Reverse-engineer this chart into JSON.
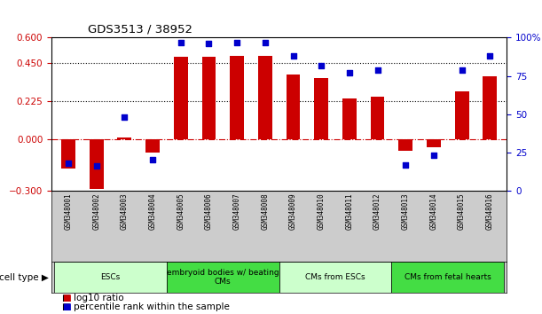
{
  "title": "GDS3513 / 38952",
  "samples": [
    "GSM348001",
    "GSM348002",
    "GSM348003",
    "GSM348004",
    "GSM348005",
    "GSM348006",
    "GSM348007",
    "GSM348008",
    "GSM348009",
    "GSM348010",
    "GSM348011",
    "GSM348012",
    "GSM348013",
    "GSM348014",
    "GSM348015",
    "GSM348016"
  ],
  "log10_ratio": [
    -0.17,
    -0.29,
    0.015,
    -0.075,
    0.49,
    0.49,
    0.495,
    0.495,
    0.385,
    0.365,
    0.245,
    0.255,
    -0.065,
    -0.045,
    0.285,
    0.375
  ],
  "percentile_rank": [
    18,
    16,
    48,
    20,
    97,
    96,
    97,
    97,
    88,
    82,
    77,
    79,
    17,
    23,
    79,
    88
  ],
  "bar_color": "#cc0000",
  "dot_color": "#0000cc",
  "ylim_left": [
    -0.3,
    0.6
  ],
  "ylim_right": [
    0,
    100
  ],
  "yticks_left": [
    -0.3,
    0,
    0.225,
    0.45,
    0.6
  ],
  "yticks_right": [
    0,
    25,
    50,
    75,
    100
  ],
  "hlines": [
    0.225,
    0.45
  ],
  "zero_line": 0,
  "cell_groups": [
    {
      "label": "ESCs",
      "start": 0,
      "end": 3,
      "color": "#ccffcc"
    },
    {
      "label": "embryoid bodies w/ beating\nCMs",
      "start": 4,
      "end": 7,
      "color": "#44dd44"
    },
    {
      "label": "CMs from ESCs",
      "start": 8,
      "end": 11,
      "color": "#ccffcc"
    },
    {
      "label": "CMs from fetal hearts",
      "start": 12,
      "end": 15,
      "color": "#44dd44"
    }
  ],
  "cell_type_label": "cell type",
  "legend_items": [
    {
      "color": "#cc0000",
      "label": "log10 ratio"
    },
    {
      "color": "#0000cc",
      "label": "percentile rank within the sample"
    }
  ],
  "background_color": "#ffffff",
  "plot_bg": "#ffffff",
  "sample_label_bg": "#cccccc",
  "bar_width": 0.5
}
